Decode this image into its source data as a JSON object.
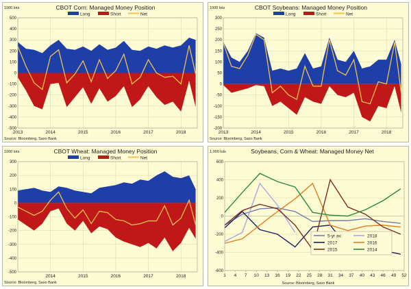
{
  "chart_data": [
    {
      "type": "area",
      "title": "CBOT Corn: Managed Money Position",
      "unit_label": "1000 lots",
      "source": "Source: Bloomberg, Saxo Bank",
      "legend": [
        "Long",
        "Short",
        "Net"
      ],
      "x_ticks": [
        "2013",
        "2014",
        "2015",
        "2016",
        "2017",
        "2018"
      ],
      "y_ticks": [
        "500",
        "400",
        "300",
        "200",
        "100",
        "0",
        "-100",
        "-200",
        "-300",
        "-400",
        "-500"
      ],
      "ylim": [
        -500,
        500
      ],
      "x": [
        2013.0,
        2013.25,
        2013.5,
        2013.75,
        2014.0,
        2014.25,
        2014.5,
        2014.75,
        2015.0,
        2015.25,
        2015.5,
        2015.75,
        2016.0,
        2016.25,
        2016.5,
        2016.75,
        2017.0,
        2017.25,
        2017.5,
        2017.75,
        2018.0,
        2018.25,
        2018.45
      ],
      "series": [
        {
          "name": "Long",
          "values": [
            280,
            220,
            210,
            180,
            250,
            300,
            220,
            210,
            240,
            200,
            260,
            210,
            230,
            290,
            210,
            200,
            240,
            220,
            250,
            230,
            250,
            320,
            300
          ]
        },
        {
          "name": "Short",
          "values": [
            -40,
            -160,
            -300,
            -330,
            -100,
            -90,
            -310,
            -220,
            -130,
            -280,
            -140,
            -260,
            -210,
            -120,
            -310,
            -240,
            -120,
            -220,
            -290,
            -260,
            -350,
            -70,
            -310
          ]
        },
        {
          "name": "Net",
          "values": [
            240,
            60,
            -90,
            -150,
            150,
            210,
            -90,
            -10,
            110,
            -80,
            120,
            -50,
            20,
            170,
            -100,
            -40,
            120,
            0,
            -40,
            -30,
            -100,
            250,
            -10
          ]
        }
      ]
    },
    {
      "type": "area",
      "title": "CBOT Soybeans: Managed Money Position",
      "unit_label": "1000 lots",
      "source": "Source: Bloomberg, Saxo Bank",
      "legend": [
        "Long",
        "Short",
        "Net"
      ],
      "x_ticks": [
        "2013",
        "2014",
        "2015",
        "2016",
        "2017",
        "2018"
      ],
      "y_ticks": [
        "300",
        "250",
        "200",
        "150",
        "100",
        "50",
        "0",
        "-50",
        "-100",
        "-150",
        "-200"
      ],
      "ylim": [
        -200,
        300
      ],
      "x": [
        2013.0,
        2013.25,
        2013.5,
        2013.75,
        2014.0,
        2014.25,
        2014.5,
        2014.75,
        2015.0,
        2015.25,
        2015.5,
        2015.75,
        2016.0,
        2016.25,
        2016.5,
        2016.75,
        2017.0,
        2017.25,
        2017.5,
        2017.75,
        2018.0,
        2018.25,
        2018.45
      ],
      "series": [
        {
          "name": "Long",
          "values": [
            190,
            120,
            100,
            150,
            230,
            210,
            60,
            70,
            60,
            70,
            140,
            70,
            80,
            210,
            110,
            100,
            150,
            70,
            80,
            110,
            110,
            200,
            90
          ]
        },
        {
          "name": "Short",
          "values": [
            -5,
            -40,
            -30,
            -20,
            -5,
            -10,
            -100,
            -80,
            -110,
            -140,
            -60,
            -80,
            -90,
            -10,
            -50,
            -60,
            -40,
            -150,
            -170,
            -100,
            -110,
            -10,
            -130
          ]
        },
        {
          "name": "Net",
          "values": [
            185,
            80,
            70,
            130,
            225,
            200,
            -40,
            -10,
            -50,
            -70,
            80,
            -10,
            -10,
            200,
            60,
            40,
            110,
            -80,
            -90,
            10,
            0,
            190,
            -40
          ]
        }
      ]
    },
    {
      "type": "area",
      "title": "CBOT Wheat: Managed  Money Position",
      "unit_label": "1000 lots",
      "source": "Source: Bloomberg, Saxo Bank",
      "legend": [
        "Long",
        "Short",
        "Net"
      ],
      "x_ticks": [
        "2014",
        "2015",
        "2016",
        "2017",
        "2018"
      ],
      "y_ticks": [
        "300",
        "200",
        "100",
        "0",
        "-100",
        "-200",
        "-300",
        "-400",
        "-500"
      ],
      "ylim": [
        -500,
        300
      ],
      "x": [
        2013.0,
        2013.25,
        2013.5,
        2013.75,
        2014.0,
        2014.25,
        2014.5,
        2014.75,
        2015.0,
        2015.25,
        2015.5,
        2015.75,
        2016.0,
        2016.25,
        2016.5,
        2016.75,
        2017.0,
        2017.25,
        2017.5,
        2017.75,
        2018.0,
        2018.25,
        2018.45
      ],
      "series": [
        {
          "name": "Long",
          "values": [
            90,
            100,
            110,
            90,
            80,
            120,
            110,
            90,
            80,
            70,
            110,
            120,
            130,
            150,
            140,
            170,
            160,
            200,
            230,
            190,
            180,
            200,
            100
          ]
        },
        {
          "name": "Short",
          "values": [
            -120,
            -160,
            -200,
            -150,
            -60,
            -40,
            -150,
            -200,
            -130,
            -220,
            -170,
            -190,
            -250,
            -280,
            -300,
            -320,
            -290,
            -330,
            -250,
            -350,
            -290,
            -180,
            -260
          ]
        },
        {
          "name": "Net",
          "values": [
            -30,
            -60,
            -90,
            -60,
            20,
            80,
            -40,
            -110,
            -50,
            -150,
            -60,
            -70,
            -120,
            -130,
            -160,
            -150,
            -130,
            -130,
            -20,
            -160,
            -110,
            20,
            -160
          ]
        }
      ]
    },
    {
      "type": "line",
      "title": "Soybeans, Corn & Wheat: Managed Money Net",
      "unit_label": "1,000 lots",
      "source": "Source: Bloomberg, Saxo Bank",
      "x_ticks": [
        "1",
        "4",
        "7",
        "10",
        "13",
        "16",
        "19",
        "22",
        "25",
        "28",
        "31",
        "34",
        "37",
        "40",
        "43",
        "46",
        "49",
        "52"
      ],
      "y_ticks": [
        "600",
        "400",
        "200",
        "0",
        "-200",
        "-400",
        "-600"
      ],
      "ylim": [
        -600,
        600
      ],
      "xlim": [
        1,
        52
      ],
      "x": [
        1,
        6,
        11,
        16,
        21,
        26,
        31,
        36,
        41,
        46,
        51
      ],
      "series": [
        {
          "name": "5-yr av.",
          "values": [
            -100,
            20,
            80,
            90,
            50,
            -60,
            -50,
            -50,
            -30,
            -60,
            -80
          ]
        },
        {
          "name": "2018",
          "values": [
            -280,
            -180,
            360,
            120,
            -180,
            null,
            null,
            null,
            null,
            null,
            null
          ]
        },
        {
          "name": "2017",
          "values": [
            -130,
            50,
            -150,
            -200,
            -340,
            -120,
            -100,
            -350,
            -330,
            -380,
            -420
          ]
        },
        {
          "name": "2016",
          "values": [
            -300,
            -250,
            -100,
            50,
            190,
            360,
            -100,
            -160,
            -110,
            -100,
            -120
          ]
        },
        {
          "name": "2015",
          "values": [
            -100,
            60,
            130,
            80,
            -100,
            -370,
            400,
            100,
            20,
            -120,
            -200
          ]
        },
        {
          "name": "2014",
          "values": [
            40,
            260,
            470,
            380,
            320,
            40,
            10,
            0,
            70,
            170,
            300
          ]
        }
      ],
      "colors": [
        "#6d7fa8",
        "#a8a8dc",
        "#1d1d5c",
        "#e07d20",
        "#7a2c24",
        "#2a8a38"
      ]
    }
  ]
}
